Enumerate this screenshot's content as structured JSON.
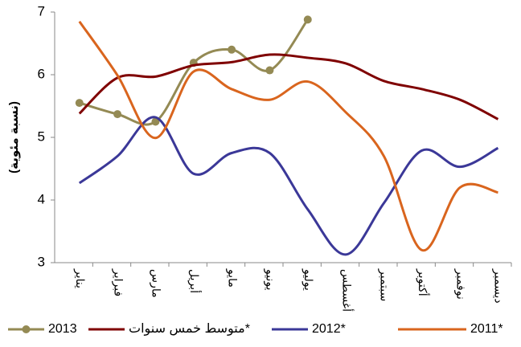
{
  "chart_data": {
    "type": "line",
    "y_label": "(نسبة مئوية)",
    "categories": [
      "يناير",
      "فبراير",
      "مارس",
      "أبريل",
      "مايو",
      "يونيو",
      "يوليو",
      "أغسطس",
      "سبتمبر",
      "أكتوبر",
      "نوفمبر",
      "ديسمبر"
    ],
    "ylim": [
      3,
      7
    ],
    "yticks": [
      3,
      4,
      5,
      6,
      7
    ],
    "grid": false,
    "series": [
      {
        "name": "2013",
        "color": "#948a54",
        "marker": "circle",
        "values": [
          5.55,
          5.37,
          5.25,
          6.19,
          6.4,
          6.07,
          6.88,
          null,
          null,
          null,
          null,
          null
        ]
      },
      {
        "name": "متوسط خمس سنوات*",
        "color": "#7f0000",
        "values": [
          5.38,
          5.95,
          5.97,
          6.15,
          6.2,
          6.32,
          6.27,
          6.18,
          5.9,
          5.77,
          5.6,
          5.29
        ]
      },
      {
        "name": "2012*",
        "color": "#3b3898",
        "values": [
          4.27,
          4.7,
          5.32,
          4.42,
          4.75,
          4.75,
          3.85,
          3.13,
          3.95,
          4.79,
          4.53,
          4.83
        ]
      },
      {
        "name": "2011*",
        "color": "#d9651e",
        "values": [
          6.85,
          5.99,
          4.99,
          6.05,
          5.77,
          5.6,
          5.89,
          5.4,
          4.7,
          3.2,
          4.2,
          4.12
        ]
      }
    ],
    "legend": "bottom"
  }
}
